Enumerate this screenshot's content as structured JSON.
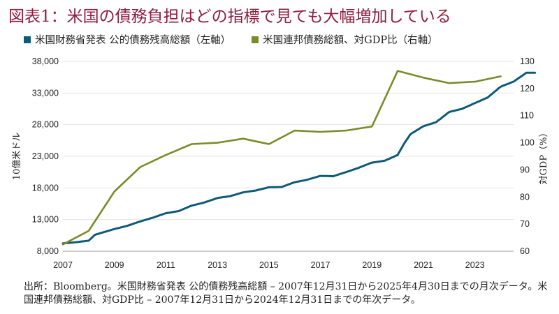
{
  "title": "図表1：米国の債務負担はどの指標で見ても大幅増加している",
  "source": "出所：Bloomberg。米国財務省発表 公的債務残高総額 – 2007年12月31日から2025年4月30日までの月次データ。米国連邦債務総額、対GDP比 – 2007年12月31日から2024年12月31日までの年次データ。",
  "colors": {
    "title": "#8f1d3d",
    "debt": "#0f5a78",
    "ratio": "#7d8a2a"
  },
  "chart_data": {
    "type": "line",
    "x_ticks": [
      "2007",
      "2009",
      "2011",
      "2013",
      "2015",
      "2017",
      "2019",
      "2021",
      "2023"
    ],
    "xlim": [
      2007,
      2024.5
    ],
    "y_left": {
      "label": "10億米ドル",
      "ticks": [
        "8,000",
        "13,000",
        "18,000",
        "23,000",
        "28,000",
        "33,000",
        "38,000"
      ],
      "lim": [
        8000,
        38000
      ]
    },
    "y_right": {
      "label": "対GDP（%）",
      "ticks": [
        "60",
        "70",
        "80",
        "90",
        "100",
        "110",
        "120",
        "130"
      ],
      "lim": [
        60,
        130
      ]
    },
    "series": [
      {
        "name": "米国財務省発表 公的債務残高総額（左軸）",
        "axis": "left",
        "color": "#0f5a78",
        "points": [
          [
            2007.0,
            9229
          ],
          [
            2007.5,
            9420
          ],
          [
            2008.0,
            9650
          ],
          [
            2008.25,
            10600
          ],
          [
            2008.5,
            10900
          ],
          [
            2009.0,
            11500
          ],
          [
            2009.5,
            12000
          ],
          [
            2010.0,
            12700
          ],
          [
            2010.5,
            13300
          ],
          [
            2011.0,
            14000
          ],
          [
            2011.5,
            14340
          ],
          [
            2012.0,
            15200
          ],
          [
            2012.5,
            15700
          ],
          [
            2013.0,
            16400
          ],
          [
            2013.5,
            16700
          ],
          [
            2014.0,
            17300
          ],
          [
            2014.5,
            17600
          ],
          [
            2015.0,
            18100
          ],
          [
            2015.5,
            18150
          ],
          [
            2016.0,
            18900
          ],
          [
            2016.5,
            19300
          ],
          [
            2017.0,
            19900
          ],
          [
            2017.5,
            19850
          ],
          [
            2018.0,
            20500
          ],
          [
            2018.5,
            21200
          ],
          [
            2019.0,
            22000
          ],
          [
            2019.5,
            22300
          ],
          [
            2020.0,
            23200
          ],
          [
            2020.25,
            25000
          ],
          [
            2020.5,
            26500
          ],
          [
            2021.0,
            27750
          ],
          [
            2021.5,
            28400
          ],
          [
            2022.0,
            30000
          ],
          [
            2022.5,
            30500
          ],
          [
            2023.0,
            31400
          ],
          [
            2023.5,
            32300
          ],
          [
            2024.0,
            34000
          ],
          [
            2024.5,
            34800
          ],
          [
            2024.75,
            35500
          ],
          [
            2025.0,
            36200
          ],
          [
            2025.33,
            36200
          ]
        ]
      },
      {
        "name": "米国連邦債務総額、対GDP比（右軸）",
        "axis": "right",
        "color": "#7d8a2a",
        "points": [
          [
            2007.0,
            62.5
          ],
          [
            2008.0,
            67.5
          ],
          [
            2009.0,
            82
          ],
          [
            2010.0,
            91
          ],
          [
            2011.0,
            95.5
          ],
          [
            2012.0,
            99.5
          ],
          [
            2013.0,
            100
          ],
          [
            2014.0,
            101.5
          ],
          [
            2015.0,
            99.5
          ],
          [
            2016.0,
            104.5
          ],
          [
            2017.0,
            104
          ],
          [
            2018.0,
            104.5
          ],
          [
            2019.0,
            106
          ],
          [
            2020.0,
            126.5
          ],
          [
            2021.0,
            124
          ],
          [
            2022.0,
            122
          ],
          [
            2023.0,
            122.5
          ],
          [
            2024.0,
            124.5
          ]
        ]
      }
    ],
    "grid": "horizontal"
  }
}
